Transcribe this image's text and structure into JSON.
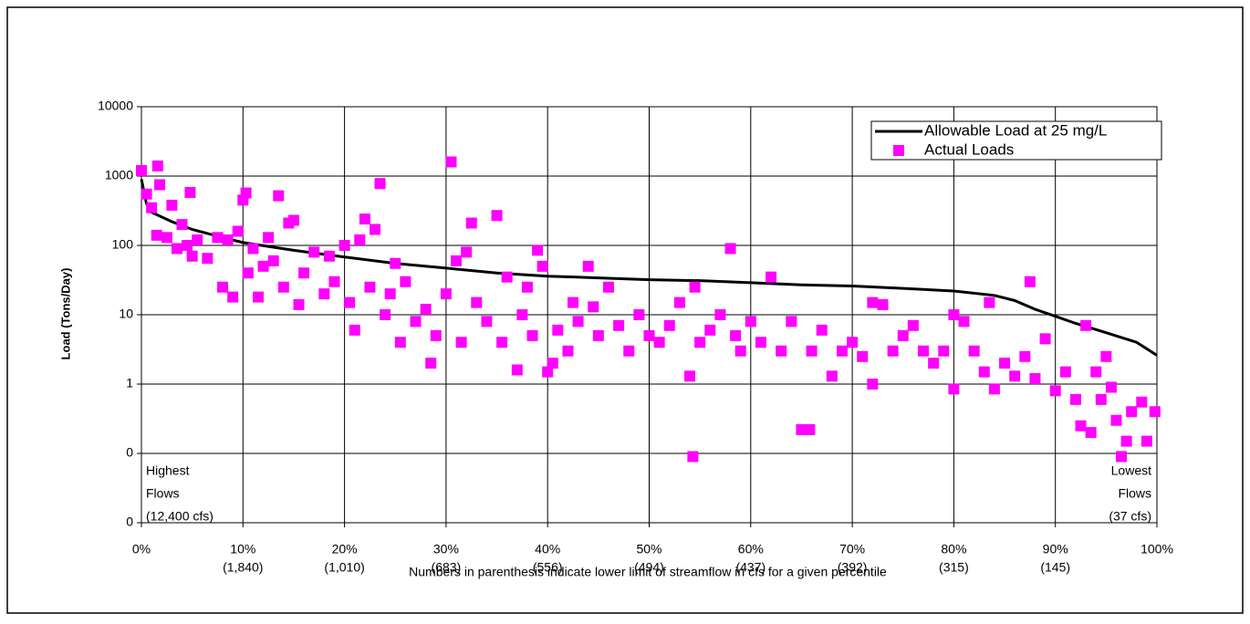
{
  "chart_data": {
    "type": "scatter",
    "x_label": "Numbers in parenthesis indicate lower limit of streamflow in cfs for a given percentile",
    "y_label": "Load (Tons/Day)",
    "y_log": true,
    "grid": true,
    "legend": "upper right",
    "xlim": [
      0,
      100
    ],
    "ylim": [
      0.01,
      10000
    ],
    "xticks": [
      {
        "value": 0,
        "label": "0%"
      },
      {
        "value": 10,
        "label": "10%"
      },
      {
        "value": 20,
        "label": "20%"
      },
      {
        "value": 30,
        "label": "30%"
      },
      {
        "value": 40,
        "label": "40%"
      },
      {
        "value": 50,
        "label": "50%"
      },
      {
        "value": 60,
        "label": "60%"
      },
      {
        "value": 70,
        "label": "70%"
      },
      {
        "value": 80,
        "label": "80%"
      },
      {
        "value": 90,
        "label": "90%"
      },
      {
        "value": 100,
        "label": "100%"
      }
    ],
    "xtick_sublabels": [
      null,
      "(1,840)",
      "(1,010)",
      "(683)",
      "(556)",
      "(494)",
      "(437)",
      "(392)",
      "(315)",
      "(145)",
      null
    ],
    "yticks": [
      {
        "value": 0.01,
        "label": "0"
      },
      {
        "value": 0.1,
        "label": "0"
      },
      1,
      10,
      100,
      1000,
      10000
    ],
    "annotations": [
      {
        "lines": [
          "Highest",
          "Flows",
          "(12,400 cfs)"
        ]
      },
      {
        "lines": [
          "Lowest",
          "Flows",
          "(37 cfs)"
        ]
      }
    ],
    "series": [
      {
        "name": "Allowable Load at 25 mg/L",
        "type": "line",
        "color": "#000000",
        "x": [
          0,
          0.5,
          1,
          3,
          5,
          8,
          10,
          15,
          20,
          25,
          30,
          35,
          40,
          45,
          50,
          55,
          60,
          65,
          70,
          75,
          80,
          84,
          86,
          88,
          90,
          92,
          95,
          98,
          100
        ],
        "values": [
          900,
          400,
          300,
          220,
          170,
          130,
          110,
          85,
          68,
          55,
          47,
          40,
          36,
          34,
          32,
          31,
          29,
          27,
          26,
          24,
          22,
          19,
          16,
          12,
          9.5,
          7.5,
          5.5,
          4,
          2.6
        ]
      },
      {
        "name": "Actual Loads",
        "type": "scatter",
        "color": "#ff00ff",
        "x": [
          0,
          0.5,
          1,
          1.6,
          1.8,
          1.5,
          2.5,
          3,
          3.5,
          4,
          4.5,
          4.8,
          5,
          5.5,
          6.5,
          7.5,
          8,
          8.5,
          9,
          9.5,
          10,
          10.3,
          10.5,
          11,
          11.5,
          12,
          12.5,
          13,
          13.5,
          14,
          14.5,
          15,
          15.5,
          16,
          17,
          18,
          18.5,
          19,
          20,
          20.5,
          21,
          21.5,
          22,
          22.5,
          23,
          23.5,
          24,
          24.5,
          25,
          25.5,
          26,
          27,
          28,
          28.5,
          29,
          30,
          30.5,
          31,
          31.5,
          32,
          32.5,
          33,
          34,
          35,
          35.5,
          36,
          37,
          37.5,
          38,
          38.5,
          39,
          39.5,
          40,
          40.5,
          41,
          42,
          42.5,
          43,
          44,
          44.5,
          45,
          46,
          47,
          48,
          49,
          50,
          51,
          52,
          53,
          54,
          54.3,
          54.5,
          55,
          56,
          57,
          58,
          58.5,
          59,
          60,
          61,
          62,
          63,
          64,
          65,
          65.8,
          66,
          67,
          68,
          69,
          70,
          71,
          72,
          72,
          73,
          74,
          75,
          76,
          77,
          78,
          79,
          80,
          80,
          81,
          82,
          83,
          83.5,
          84,
          85,
          86,
          87,
          87.5,
          88,
          89,
          90,
          91,
          92,
          92.5,
          93,
          93.5,
          94,
          94.5,
          95,
          95.5,
          96,
          96.5,
          97,
          97.5,
          98.5,
          99,
          99.8
        ],
        "values": [
          1200,
          550,
          350,
          1400,
          750,
          140,
          130,
          380,
          90,
          200,
          100,
          580,
          70,
          120,
          65,
          130,
          25,
          120,
          18,
          160,
          450,
          570,
          40,
          90,
          18,
          50,
          130,
          60,
          520,
          25,
          210,
          230,
          14,
          40,
          80,
          20,
          70,
          30,
          100,
          15,
          6,
          120,
          240,
          25,
          170,
          780,
          10,
          20,
          55,
          4,
          30,
          8,
          12,
          2,
          5,
          20,
          1600,
          60,
          4,
          80,
          210,
          15,
          8,
          270,
          4,
          35,
          1.6,
          10,
          25,
          5,
          85,
          50,
          1.5,
          2,
          6,
          3,
          15,
          8,
          50,
          13,
          5,
          25,
          7,
          3,
          10,
          5,
          4,
          7,
          15,
          1.3,
          0.09,
          25,
          4,
          6,
          10,
          90,
          5,
          3,
          8,
          4,
          35,
          3,
          8,
          0.22,
          0.22,
          3,
          6,
          1.3,
          3,
          4,
          2.5,
          15,
          1,
          14,
          3,
          5,
          7,
          3,
          2,
          3,
          10,
          0.85,
          8,
          3,
          1.5,
          15,
          0.85,
          2,
          1.3,
          2.5,
          30,
          1.2,
          4.5,
          0.8,
          1.5,
          0.6,
          0.25,
          7,
          0.2,
          1.5,
          0.6,
          2.5,
          0.9,
          0.3,
          0.09,
          0.15,
          0.4,
          0.55,
          0.15,
          0.4
        ]
      }
    ]
  }
}
